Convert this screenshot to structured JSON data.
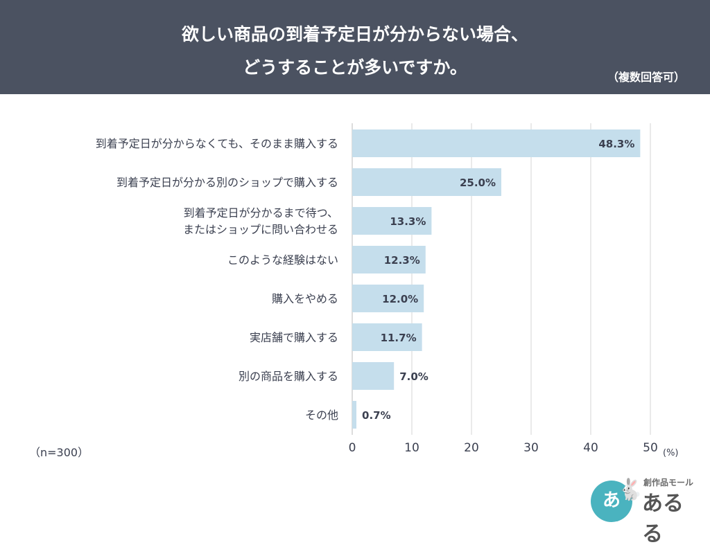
{
  "header": {
    "title_line1": "欲しい商品の到着予定日が分からない場合、",
    "title_line2": "どうすることが多いですか。",
    "subtitle": "（複数回答可）"
  },
  "sample_note": "（n=300）",
  "logo": {
    "circle_text": "あ",
    "small_text": "創作品モール",
    "main_text": "あるる"
  },
  "colors": {
    "bar": "#c5deec",
    "header_bg": "#4b5261",
    "grid": "#d6d6d6"
  },
  "chart_data": {
    "type": "bar",
    "orientation": "horizontal",
    "categories": [
      [
        "到着予定日が分からなくても、そのまま購入する"
      ],
      [
        "到着予定日が分かる別のショップで購入する"
      ],
      [
        "到着予定日が分かるまで待つ、",
        "またはショップに問い合わせる"
      ],
      [
        "このような経験はない"
      ],
      [
        "購入をやめる"
      ],
      [
        "実店舗で購入する"
      ],
      [
        "別の商品を購入する"
      ],
      [
        "その他"
      ]
    ],
    "values": [
      48.3,
      25.0,
      13.3,
      12.3,
      12.0,
      11.7,
      7.0,
      0.7
    ],
    "value_labels": [
      "48.3%",
      "25.0%",
      "13.3%",
      "12.3%",
      "12.0%",
      "11.7%",
      "7.0%",
      "0.7%"
    ],
    "xlim": [
      0,
      50
    ],
    "xticks": [
      0,
      10,
      20,
      30,
      40,
      50
    ],
    "unit_label": "(%)",
    "grid": true
  }
}
